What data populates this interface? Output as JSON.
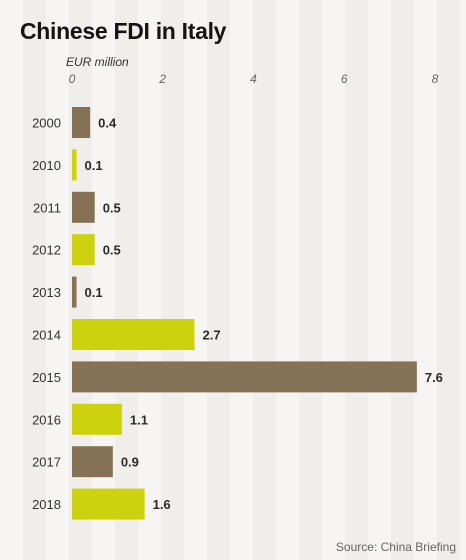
{
  "colors": {
    "bar_brown": "#857155",
    "bar_yellow": "#cdd20e"
  },
  "chart_data": {
    "type": "bar",
    "orientation": "horizontal",
    "title": "Chinese FDI in Italy",
    "xlabel": "EUR million",
    "ylabel": "",
    "xlim": [
      0,
      8
    ],
    "xticks": [
      "0",
      "2",
      "4",
      "6",
      "8"
    ],
    "categories": [
      "2000",
      "2010",
      "2011",
      "2012",
      "2013",
      "2014",
      "2015",
      "2016",
      "2017",
      "2018"
    ],
    "values": [
      0.4,
      0.1,
      0.5,
      0.5,
      0.1,
      2.7,
      7.6,
      1.1,
      0.9,
      1.6
    ],
    "value_labels": [
      "0.4",
      "0.1",
      "0.5",
      "0.5",
      "0.1",
      "2.7",
      "7.6",
      "1.1",
      "0.9",
      "1.6"
    ],
    "bar_colors": [
      "brown",
      "yellow",
      "brown",
      "yellow",
      "brown",
      "yellow",
      "brown",
      "yellow",
      "brown",
      "yellow"
    ],
    "grid": false,
    "legend": "none"
  },
  "source": "Source: China Briefing"
}
